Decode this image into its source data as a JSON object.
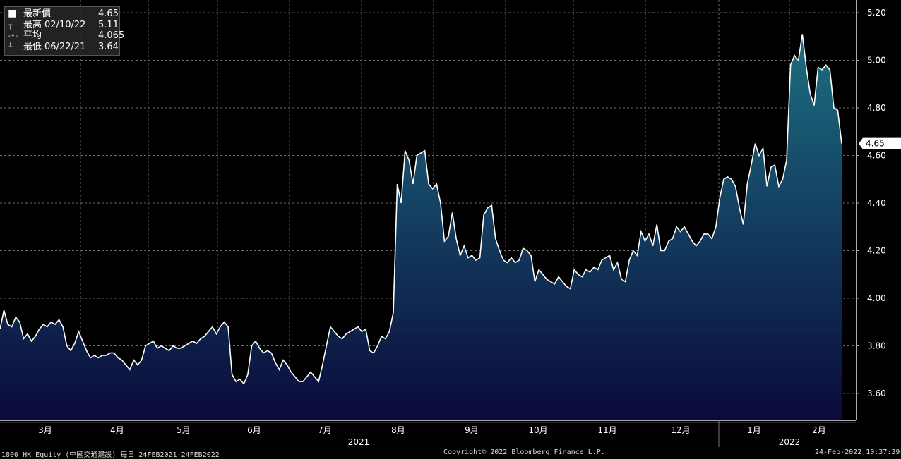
{
  "legend": {
    "rows": [
      {
        "label": "最新價",
        "date": "",
        "value": "4.65",
        "icon": "filled-square-icon"
      },
      {
        "label": "最高",
        "date": "02/10/22",
        "value": "5.11",
        "icon": "high-marker-icon"
      },
      {
        "label": "平均",
        "date": "",
        "value": "4.065",
        "icon": "average-marker-icon"
      },
      {
        "label": "最低",
        "date": "06/22/21",
        "value": "3.64",
        "icon": "low-marker-icon"
      }
    ]
  },
  "footer": {
    "left": "1800 HK Equity (中國交通建設) 每日 24FEB2021-24FEB2022",
    "center": "Copyright© 2022 Bloomberg Finance L.P.",
    "right": "24-Feb-2022 10:37:39"
  },
  "chart_data": {
    "type": "area",
    "title": "",
    "xlabel": "",
    "ylabel": "",
    "ylim": [
      3.5,
      5.25
    ],
    "yticks": [
      "3.60",
      "3.80",
      "4.00",
      "4.20",
      "4.40",
      "4.60",
      "4.80",
      "5.00",
      "5.20"
    ],
    "month_labels": [
      "3月",
      "4月",
      "5月",
      "6月",
      "7月",
      "8月",
      "9月",
      "10月",
      "11月",
      "12月",
      "1月",
      "2月"
    ],
    "year_labels": [
      "2021",
      "2022"
    ],
    "last_value_label": "4.65",
    "grid": true,
    "colors": {
      "line": "#ffffff",
      "fill_top": "#1c6f82",
      "fill_bottom": "#0a0a3a",
      "grid": "#6a6a6a"
    },
    "series": [
      {
        "values": [
          3.87,
          3.95,
          3.89,
          3.88,
          3.92,
          3.9,
          3.83,
          3.85,
          3.82,
          3.84,
          3.87,
          3.89,
          3.88,
          3.9,
          3.89,
          3.91,
          3.88,
          3.8,
          3.78,
          3.81,
          3.86,
          3.82,
          3.78,
          3.75,
          3.76,
          3.75,
          3.76,
          3.76,
          3.77,
          3.77,
          3.75,
          3.74,
          3.72,
          3.7,
          3.74,
          3.72,
          3.74,
          3.8,
          3.81,
          3.82,
          3.79,
          3.8,
          3.79,
          3.78,
          3.8,
          3.79,
          3.79,
          3.8,
          3.81,
          3.82,
          3.81,
          3.83,
          3.84,
          3.86,
          3.88,
          3.85,
          3.88,
          3.9,
          3.88,
          3.68,
          3.65,
          3.66,
          3.64,
          3.68,
          3.8,
          3.82,
          3.79,
          3.77,
          3.78,
          3.77,
          3.73,
          3.7,
          3.74,
          3.72,
          3.69,
          3.67,
          3.65,
          3.65,
          3.67,
          3.69,
          3.67,
          3.65,
          3.72,
          3.8,
          3.88,
          3.86,
          3.84,
          3.83,
          3.85,
          3.86,
          3.87,
          3.88,
          3.86,
          3.87,
          3.78,
          3.77,
          3.8,
          3.84,
          3.83,
          3.86,
          3.94,
          4.48,
          4.4,
          4.62,
          4.58,
          4.48,
          4.6,
          4.61,
          4.62,
          4.48,
          4.46,
          4.48,
          4.4,
          4.24,
          4.26,
          4.36,
          4.25,
          4.18,
          4.22,
          4.17,
          4.18,
          4.16,
          4.17,
          4.35,
          4.38,
          4.39,
          4.25,
          4.2,
          4.16,
          4.15,
          4.17,
          4.15,
          4.16,
          4.21,
          4.2,
          4.18,
          4.07,
          4.12,
          4.1,
          4.08,
          4.07,
          4.06,
          4.09,
          4.07,
          4.05,
          4.04,
          4.12,
          4.1,
          4.09,
          4.12,
          4.11,
          4.13,
          4.12,
          4.16,
          4.17,
          4.18,
          4.12,
          4.15,
          4.08,
          4.07,
          4.16,
          4.2,
          4.18,
          4.28,
          4.24,
          4.27,
          4.22,
          4.31,
          4.2,
          4.2,
          4.24,
          4.25,
          4.3,
          4.28,
          4.3,
          4.27,
          4.24,
          4.22,
          4.24,
          4.27,
          4.27,
          4.25,
          4.3,
          4.42,
          4.5,
          4.51,
          4.5,
          4.47,
          4.38,
          4.31,
          4.48,
          4.56,
          4.65,
          4.6,
          4.63,
          4.47,
          4.55,
          4.56,
          4.47,
          4.5,
          4.58,
          4.98,
          5.02,
          5.0,
          5.11,
          4.97,
          4.86,
          4.81,
          4.97,
          4.96,
          4.98,
          4.96,
          4.8,
          4.79,
          4.65
        ]
      }
    ]
  }
}
